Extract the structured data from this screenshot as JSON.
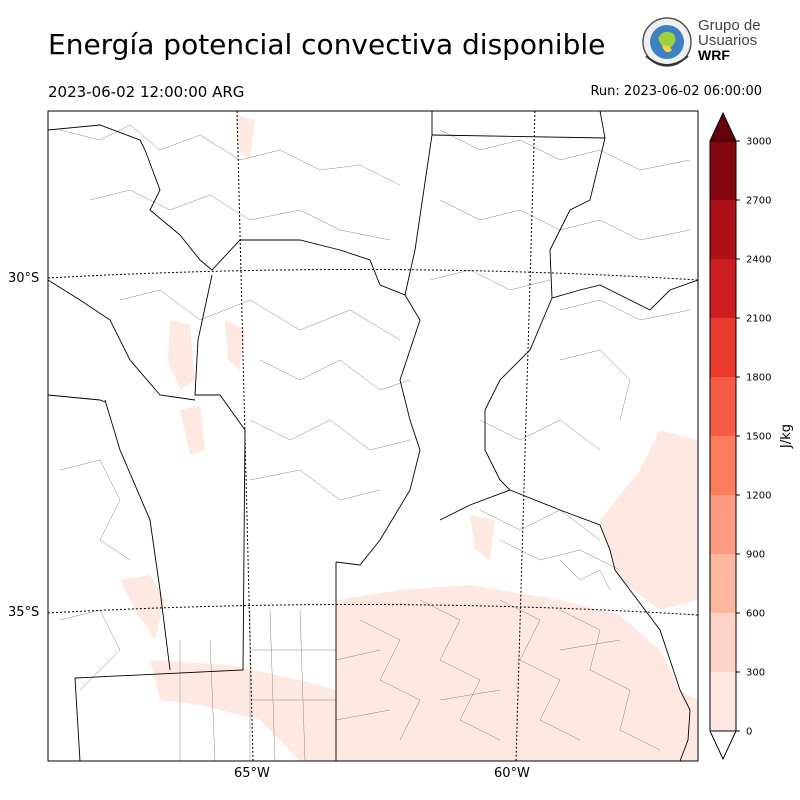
{
  "title": "Energía potencial convectiva disponible",
  "valid_time": "2023-06-02 12:00:00 ARG",
  "run_time": "Run: 2023-06-02 06:00:00",
  "logo": {
    "line1": "Grupo de",
    "line2": "Usuarios",
    "line3": "WRF"
  },
  "map": {
    "lat_labels": [
      "30°S",
      "35°S"
    ],
    "lon_labels": [
      "65°W",
      "60°W"
    ]
  },
  "colorbar": {
    "label": "J/kg",
    "ticks": [
      "0",
      "300",
      "600",
      "900",
      "1200",
      "1500",
      "1800",
      "2100",
      "2400",
      "2700",
      "3000"
    ],
    "colors": [
      "#fee9e2",
      "#fcd3c5",
      "#fcb89e",
      "#fc9b7f",
      "#fb7d5d",
      "#f65c45",
      "#ea3a2e",
      "#cc1e21",
      "#ad1117",
      "#84070f",
      "#67000d"
    ]
  }
}
